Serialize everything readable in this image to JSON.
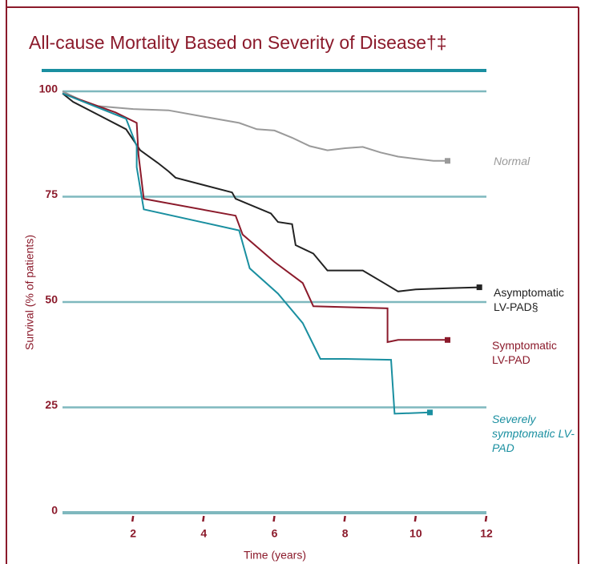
{
  "chart_data": {
    "type": "line",
    "title": "All-cause Mortality Based on Severity of Disease†‡",
    "x_label": "Time (years)",
    "y_label": "Survival (% of patients)",
    "xlim": [
      0,
      12
    ],
    "xticks": [
      2,
      4,
      6,
      8,
      10,
      12
    ],
    "ylim": [
      0,
      100
    ],
    "yticks": [
      0,
      25,
      50,
      75,
      100
    ],
    "grid": true,
    "series": [
      {
        "name": "Normal",
        "color": "#9a9a9a",
        "x": [
          0,
          0.5,
          1,
          2,
          3,
          4,
          5,
          5.5,
          6,
          6.5,
          7,
          7.5,
          8,
          8.5,
          9,
          9.5,
          10,
          10.5,
          10.9
        ],
        "values": [
          100,
          98,
          96.5,
          95.8,
          95.5,
          94,
          92.5,
          91,
          90.7,
          89,
          87,
          86,
          86.5,
          86.8,
          85.5,
          84.5,
          84,
          83.5,
          83.5
        ]
      },
      {
        "name": "Asymptomatic LV-PAD§",
        "color": "#222222",
        "x": [
          0,
          0.3,
          1.8,
          2.2,
          2.7,
          3,
          3.2,
          4.8,
          4.9,
          5.9,
          6.1,
          6.5,
          6.6,
          7.1,
          7.5,
          8.5,
          9.1,
          9.5,
          10,
          11,
          11.8
        ],
        "values": [
          99.5,
          97.5,
          91,
          86,
          83,
          81,
          79.5,
          76,
          74.5,
          71,
          69,
          68.5,
          63.5,
          61.5,
          57.5,
          57.5,
          54.5,
          52.5,
          53,
          53.3,
          53.5
        ]
      },
      {
        "name": "Symptomatic LV-PAD",
        "color": "#8b1a2b",
        "x": [
          0,
          1.5,
          2.1,
          2.15,
          2.3,
          4.9,
          5.1,
          6,
          6.8,
          7.1,
          9.2,
          9.2,
          9.5,
          10.9
        ],
        "values": [
          99.5,
          95,
          92.5,
          85,
          74.5,
          70.5,
          66,
          59.5,
          54.5,
          49,
          48.5,
          40.5,
          41,
          41
        ]
      },
      {
        "name": "Severely symptomatic LV-PAD",
        "color": "#1a8fa0",
        "x": [
          0,
          1.8,
          2.1,
          2.1,
          2.3,
          5,
          5.3,
          6.1,
          6.8,
          7.3,
          8,
          9.3,
          9.4,
          10.4
        ],
        "values": [
          99.5,
          93.5,
          87,
          82,
          72,
          67,
          58,
          52,
          45,
          36.5,
          36.5,
          36.3,
          23.5,
          23.8
        ]
      }
    ]
  }
}
